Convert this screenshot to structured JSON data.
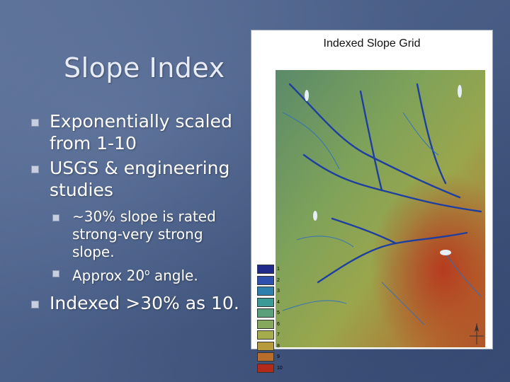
{
  "slide": {
    "title": "Slope Index",
    "bullets": [
      "Exponentially scaled from 1-10",
      "USGS & engineering studies"
    ],
    "sub_bullets": [
      "~30% slope is rated strong-very strong slope.",
      "Approx 20"
    ],
    "degree_symbol": "o",
    "degree_suffix": " angle.",
    "last_bullet": "Indexed >30% as 10."
  },
  "map": {
    "title": "Indexed Slope Grid",
    "legend": [
      {
        "label": "1",
        "color": "#1f2a8c"
      },
      {
        "label": "2",
        "color": "#2f4fae"
      },
      {
        "label": "3",
        "color": "#2f7fae"
      },
      {
        "label": "4",
        "color": "#3a9a96"
      },
      {
        "label": "5",
        "color": "#5aa07a"
      },
      {
        "label": "6",
        "color": "#86a85c"
      },
      {
        "label": "7",
        "color": "#a4ac4c"
      },
      {
        "label": "8",
        "color": "#b79a3c"
      },
      {
        "label": "9",
        "color": "#b86d2a"
      },
      {
        "label": "10",
        "color": "#b32a1a"
      }
    ]
  },
  "colors": {
    "background": "#4a5f87",
    "title_text": "#e8ecf6",
    "body_text": "#ffffff",
    "bullet_marker": "#c6cee0"
  }
}
